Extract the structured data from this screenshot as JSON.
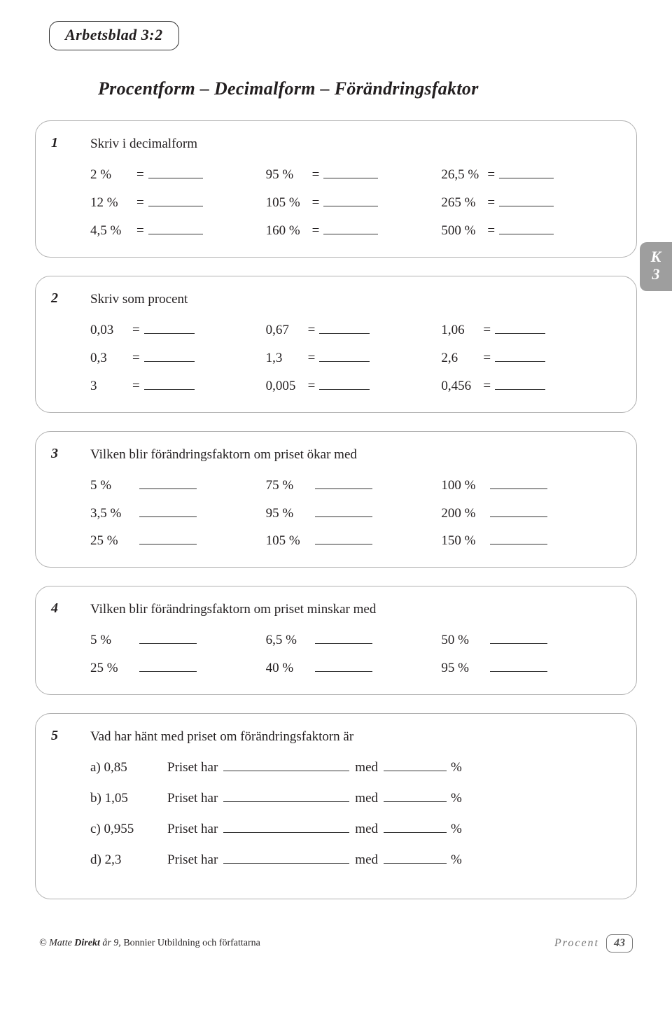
{
  "header": {
    "title": "Arbetsblad 3:2"
  },
  "page_title": "Procentform – Decimalform – Förändringsfaktor",
  "side_tab": {
    "line1": "K",
    "line2": "3"
  },
  "q1": {
    "num": "1",
    "prompt": "Skriv i decimalform",
    "rows": [
      [
        "2 %",
        "95 %",
        "26,5 %"
      ],
      [
        "12 %",
        "105 %",
        "265 %"
      ],
      [
        "4,5 %",
        "160 %",
        "500 %"
      ]
    ]
  },
  "q2": {
    "num": "2",
    "prompt": "Skriv som procent",
    "rows": [
      [
        "0,03",
        "0,67",
        "1,06"
      ],
      [
        "0,3",
        "1,3",
        "2,6"
      ],
      [
        "3",
        "0,005",
        "0,456"
      ]
    ]
  },
  "q3": {
    "num": "3",
    "prompt": "Vilken blir förändringsfaktorn om priset ökar med",
    "rows": [
      [
        "5 %",
        "75 %",
        "100 %"
      ],
      [
        "3,5 %",
        "95 %",
        "200 %"
      ],
      [
        "25 %",
        "105 %",
        "150 %"
      ]
    ]
  },
  "q4": {
    "num": "4",
    "prompt": "Vilken blir förändringsfaktorn om priset minskar med",
    "rows": [
      [
        "5 %",
        "6,5 %",
        "50 %"
      ],
      [
        "25 %",
        "40 %",
        "95 %"
      ]
    ]
  },
  "q5": {
    "num": "5",
    "prompt": "Vad har hänt med priset om förändringsfaktorn är",
    "priset_har": "Priset har",
    "med": "med",
    "pct": "%",
    "rows": [
      {
        "letter": "a)",
        "val": "0,85"
      },
      {
        "letter": "b)",
        "val": "1,05"
      },
      {
        "letter": "c)",
        "val": "0,955"
      },
      {
        "letter": "d)",
        "val": "2,3"
      }
    ]
  },
  "footer": {
    "copyright_prefix": "© ",
    "brand": "Matte ",
    "brand2": "Direkt",
    "brand3": " år 9,",
    "rest": " Bonnier Utbildning och författarna",
    "topic": "Procent",
    "page": "43"
  }
}
